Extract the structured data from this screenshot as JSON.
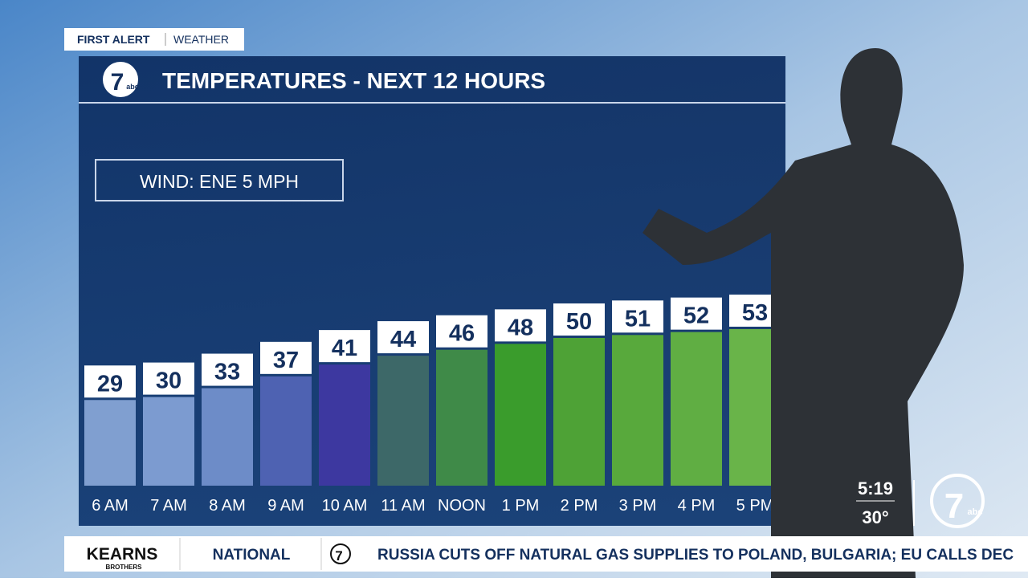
{
  "header": {
    "brand": "FIRST ALERT",
    "section": "WEATHER"
  },
  "station_logo": {
    "number": "7",
    "network": "abc"
  },
  "chart_data": {
    "type": "bar",
    "title": "TEMPERATURES - NEXT 12 HOURS",
    "annotation": "WIND: ENE 5 MPH",
    "categories": [
      "6 AM",
      "7 AM",
      "8 AM",
      "9 AM",
      "10 AM",
      "11 AM",
      "NOON",
      "1 PM",
      "2 PM",
      "3 PM",
      "4 PM",
      "5 PM"
    ],
    "values": [
      29,
      30,
      33,
      37,
      41,
      44,
      46,
      48,
      50,
      51,
      52,
      53
    ],
    "colors": [
      "#809fd0",
      "#7c9bd0",
      "#6d8cc8",
      "#4e62b2",
      "#3d38a0",
      "#3d6868",
      "#3f8a48",
      "#3a9c2c",
      "#4ea236",
      "#58a93c",
      "#60ae43",
      "#69b449"
    ]
  },
  "clock": {
    "time": "5:19",
    "temperature": "30°"
  },
  "ticker": {
    "sponsor": "KEARNS",
    "sponsor_sub": "BROTHERS",
    "label": "NATIONAL",
    "headline": "RUSSIA CUTS OFF NATURAL GAS SUPPLIES TO POLAND, BULGARIA; EU CALLS DEC"
  }
}
